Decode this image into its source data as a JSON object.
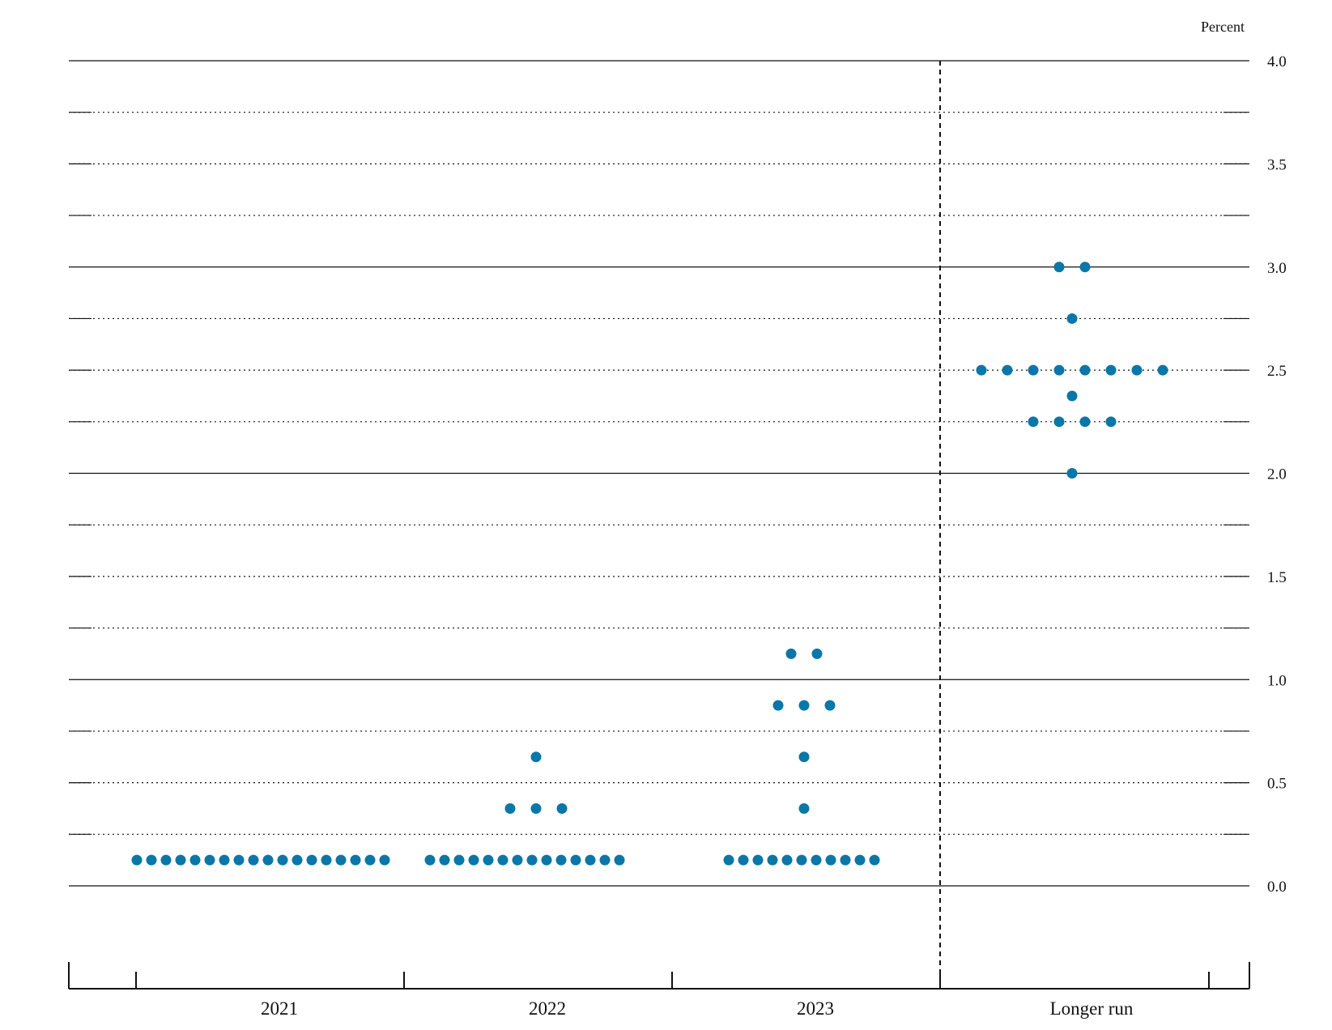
{
  "chart_data": {
    "type": "scatter",
    "unit_label": "Percent",
    "categories": [
      "2021",
      "2022",
      "2023",
      "Longer run"
    ],
    "ylim": [
      0.0,
      4.0
    ],
    "y_ticks": [
      "0.0",
      "0.5",
      "1.0",
      "1.5",
      "2.0",
      "2.5",
      "3.0",
      "3.5",
      "4.0"
    ],
    "grid": "dotted at every 0.25, solid at every 1.0",
    "dot_color": "#0a77a8",
    "series": [
      {
        "category": "2021",
        "points": [
          {
            "y": 0.125,
            "count": 18
          }
        ]
      },
      {
        "category": "2022",
        "points": [
          {
            "y": 0.125,
            "count": 14
          },
          {
            "y": 0.375,
            "count": 3
          },
          {
            "y": 0.625,
            "count": 1
          }
        ]
      },
      {
        "category": "2023",
        "points": [
          {
            "y": 0.125,
            "count": 11
          },
          {
            "y": 0.375,
            "count": 1
          },
          {
            "y": 0.625,
            "count": 1
          },
          {
            "y": 0.875,
            "count": 3
          },
          {
            "y": 1.125,
            "count": 2
          }
        ]
      },
      {
        "category": "Longer run",
        "points": [
          {
            "y": 2.0,
            "count": 1
          },
          {
            "y": 2.25,
            "count": 4
          },
          {
            "y": 2.375,
            "count": 1
          },
          {
            "y": 2.5,
            "count": 8
          },
          {
            "y": 2.75,
            "count": 1
          },
          {
            "y": 3.0,
            "count": 2
          }
        ]
      }
    ]
  }
}
